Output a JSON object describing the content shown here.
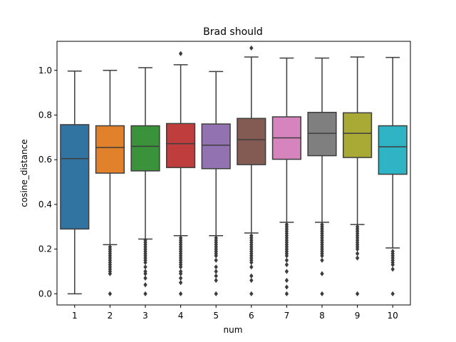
{
  "chart_data": {
    "type": "box",
    "title": "Brad should",
    "xlabel": "num",
    "ylabel": "cosine_distance",
    "ylim": [
      -0.05,
      1.13
    ],
    "y_ticks": [
      "0.0",
      "0.2",
      "0.4",
      "0.6",
      "0.8",
      "1.0"
    ],
    "y_tick_values": [
      0.0,
      0.2,
      0.4,
      0.6,
      0.8,
      1.0
    ],
    "grid": false,
    "categories": [
      "1",
      "2",
      "3",
      "4",
      "5",
      "6",
      "7",
      "8",
      "9",
      "10"
    ],
    "boxes": [
      {
        "category": "1",
        "color": "#3274a1",
        "whisker_low": 0.0,
        "q1": 0.29,
        "median": 0.605,
        "q3": 0.757,
        "whisker_high": 0.997,
        "outliers": []
      },
      {
        "category": "2",
        "color": "#e1812c",
        "whisker_low": 0.22,
        "q1": 0.54,
        "median": 0.655,
        "q3": 0.752,
        "whisker_high": 1.0,
        "outliers": [
          0.0,
          0.09,
          0.1,
          0.11,
          0.12,
          0.13,
          0.14,
          0.15,
          0.16,
          0.17,
          0.18,
          0.19,
          0.2,
          0.21
        ]
      },
      {
        "category": "3",
        "color": "#3a923a",
        "whisker_low": 0.245,
        "q1": 0.55,
        "median": 0.66,
        "q3": 0.752,
        "whisker_high": 1.012,
        "outliers": [
          0.0,
          0.04,
          0.07,
          0.09,
          0.1,
          0.12,
          0.14,
          0.15,
          0.16,
          0.17,
          0.18,
          0.19,
          0.2,
          0.21,
          0.22,
          0.23,
          0.24
        ]
      },
      {
        "category": "4",
        "color": "#c03d3e",
        "whisker_low": 0.26,
        "q1": 0.565,
        "median": 0.672,
        "q3": 0.762,
        "whisker_high": 1.025,
        "outliers": [
          0.0,
          0.05,
          0.07,
          0.09,
          0.1,
          0.12,
          0.13,
          0.14,
          0.15,
          0.16,
          0.17,
          0.18,
          0.19,
          0.2,
          0.21,
          0.22,
          0.23,
          0.24,
          0.25,
          1.075
        ]
      },
      {
        "category": "5",
        "color": "#9372b2",
        "whisker_low": 0.26,
        "q1": 0.56,
        "median": 0.665,
        "q3": 0.76,
        "whisker_high": 0.995,
        "outliers": [
          0.0,
          0.06,
          0.08,
          0.1,
          0.12,
          0.15,
          0.17,
          0.18,
          0.19,
          0.2,
          0.21,
          0.22,
          0.23,
          0.24,
          0.25
        ]
      },
      {
        "category": "6",
        "color": "#845b53",
        "whisker_low": 0.272,
        "q1": 0.578,
        "median": 0.69,
        "q3": 0.785,
        "whisker_high": 1.06,
        "outliers": [
          0.0,
          0.06,
          0.08,
          0.12,
          0.14,
          0.15,
          0.16,
          0.17,
          0.18,
          0.19,
          0.2,
          0.21,
          0.22,
          0.23,
          0.24,
          0.25,
          0.26,
          1.1
        ]
      },
      {
        "category": "7",
        "color": "#d684bd",
        "whisker_low": 0.32,
        "q1": 0.602,
        "median": 0.698,
        "q3": 0.792,
        "whisker_high": 1.055,
        "outliers": [
          0.0,
          0.03,
          0.06,
          0.1,
          0.13,
          0.15,
          0.17,
          0.18,
          0.19,
          0.2,
          0.21,
          0.22,
          0.23,
          0.24,
          0.25,
          0.26,
          0.27,
          0.28,
          0.29,
          0.3,
          0.31
        ]
      },
      {
        "category": "8",
        "color": "#7f7f7f",
        "whisker_low": 0.32,
        "q1": 0.618,
        "median": 0.718,
        "q3": 0.812,
        "whisker_high": 1.055,
        "outliers": [
          0.0,
          0.09,
          0.15,
          0.17,
          0.18,
          0.19,
          0.2,
          0.21,
          0.22,
          0.23,
          0.24,
          0.25,
          0.26,
          0.27,
          0.28,
          0.29,
          0.3,
          0.31
        ]
      },
      {
        "category": "9",
        "color": "#a9aa35",
        "whisker_low": 0.31,
        "q1": 0.61,
        "median": 0.718,
        "q3": 0.81,
        "whisker_high": 1.06,
        "outliers": [
          0.0,
          0.16,
          0.18,
          0.2,
          0.21,
          0.22,
          0.23,
          0.24,
          0.25,
          0.26,
          0.27,
          0.28,
          0.29,
          0.3
        ]
      },
      {
        "category": "10",
        "color": "#2eb4c5",
        "whisker_low": 0.205,
        "q1": 0.535,
        "median": 0.658,
        "q3": 0.752,
        "whisker_high": 1.058,
        "outliers": [
          0.0,
          0.11,
          0.13,
          0.14,
          0.15,
          0.16,
          0.17,
          0.18,
          0.19
        ]
      }
    ]
  }
}
